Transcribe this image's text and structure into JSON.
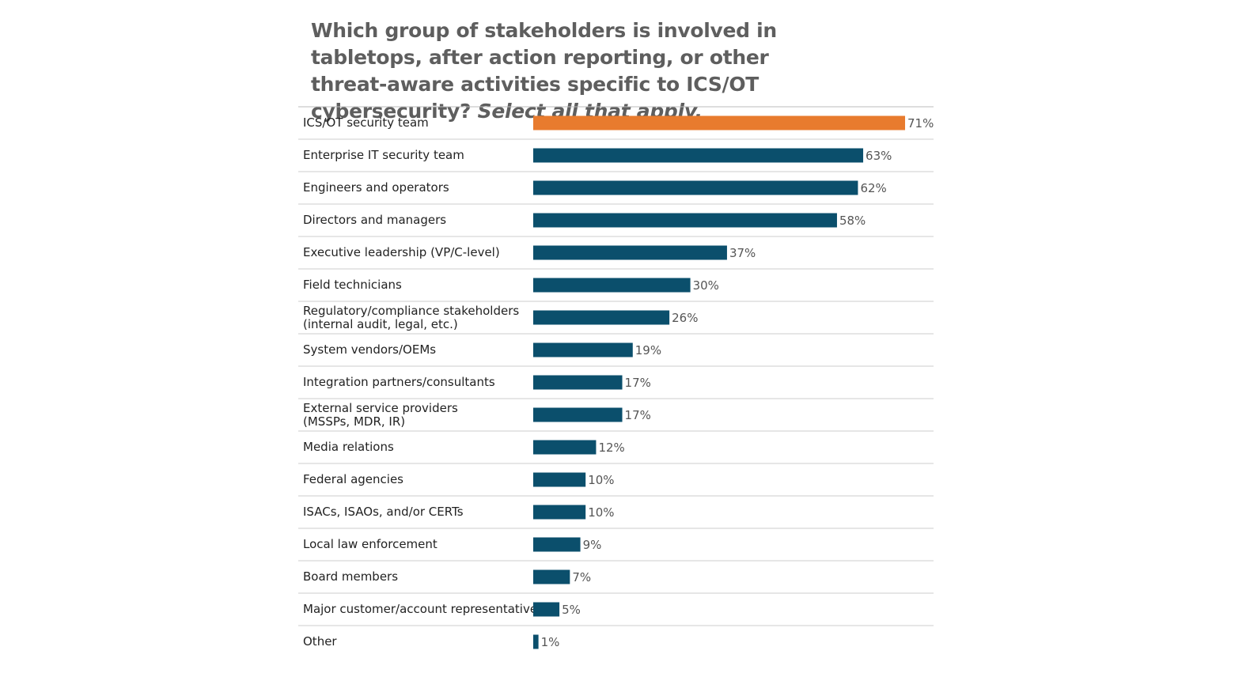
{
  "chart_data": {
    "type": "bar",
    "orientation": "horizontal",
    "title": "Which group of stakeholders is involved in tabletops, after action reporting, or other threat-aware activities specific to ICS/OT cybersecurity?",
    "title_italic": "Select all that apply.",
    "categories": [
      "ICS/OT security team",
      "Enterprise IT security team",
      "Engineers and operators",
      "Directors and managers",
      "Executive leadership (VP/C-level)",
      "Field technicians",
      "Regulatory/compliance stakeholders\n(internal audit, legal, etc.)",
      "System vendors/OEMs",
      "Integration partners/consultants",
      "External service providers\n(MSSPs, MDR, IR)",
      "Media relations",
      "Federal agencies",
      "ISACs, ISAOs, and/or CERTs",
      "Local law enforcement",
      "Board members",
      "Major customer/account representatives",
      "Other"
    ],
    "values": [
      71,
      63,
      62,
      58,
      37,
      30,
      26,
      19,
      17,
      17,
      12,
      10,
      10,
      9,
      7,
      5,
      1
    ],
    "value_labels": [
      "71%",
      "63%",
      "62%",
      "58%",
      "37%",
      "30%",
      "26%",
      "19%",
      "17%",
      "17%",
      "12%",
      "10%",
      "10%",
      "9%",
      "7%",
      "5%",
      "1%"
    ],
    "colors": [
      "#e87b2e",
      "#0b4f6c",
      "#0b4f6c",
      "#0b4f6c",
      "#0b4f6c",
      "#0b4f6c",
      "#0b4f6c",
      "#0b4f6c",
      "#0b4f6c",
      "#0b4f6c",
      "#0b4f6c",
      "#0b4f6c",
      "#0b4f6c",
      "#0b4f6c",
      "#0b4f6c",
      "#0b4f6c",
      "#0b4f6c"
    ]
  }
}
